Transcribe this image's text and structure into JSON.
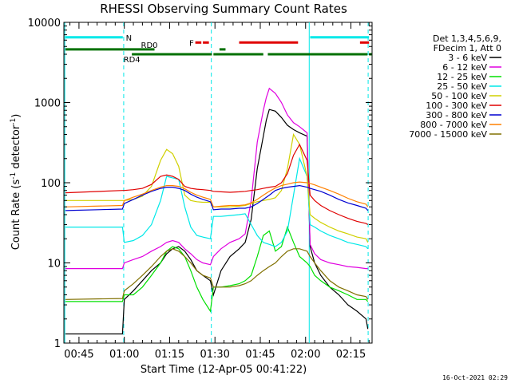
{
  "chart_data": {
    "type": "line",
    "title": "RHESSI Observing Summary Count Rates",
    "xlabel": "Start Time (12-Apr-05 00:41:22)",
    "ylabel": "Count Rate (s⁻¹ detector⁻¹)",
    "ylabel_main": "Count Rate (s",
    "ylabel_sup1": "-1",
    "ylabel_mid": " detector",
    "ylabel_sup2": "-1",
    "ylabel_end": ")",
    "x_start_label": "00:41:22",
    "xlim_min": [
      40,
      142
    ],
    "ylim": [
      1,
      10000
    ],
    "y_scale": "log",
    "x_ticks": [
      {
        "label": "00:45",
        "min": 45
      },
      {
        "label": "01:00",
        "min": 60
      },
      {
        "label": "01:15",
        "min": 75
      },
      {
        "label": "01:30",
        "min": 90
      },
      {
        "label": "01:45",
        "min": 105
      },
      {
        "label": "02:00",
        "min": 120
      },
      {
        "label": "02:15",
        "min": 135
      }
    ],
    "y_ticks": [
      {
        "label": "1",
        "value": 1
      },
      {
        "label": "10",
        "value": 10
      },
      {
        "label": "100",
        "value": 100
      },
      {
        "label": "1000",
        "value": 1000
      },
      {
        "label": "10000",
        "value": 10000
      }
    ],
    "legend": {
      "header": [
        "Det 1,3,4,5,6,9,",
        "FDecim 1, Att 0"
      ],
      "placement": "right"
    },
    "flags": [
      {
        "label": "N",
        "color": "#00e8e8",
        "segments": [
          [
            40.5,
            59.5
          ],
          [
            121.5,
            141
          ]
        ],
        "level": 6500
      },
      {
        "label": "F",
        "color": "#e00000",
        "segments": [
          [
            83.5,
            85.5
          ],
          [
            86,
            88
          ],
          [
            98,
            117.5
          ],
          [
            138,
            141
          ]
        ],
        "level": 5600
      },
      {
        "label": "RD0",
        "color": "#007000",
        "segments": [
          [
            40.5,
            70
          ],
          [
            93.5,
            91.5
          ]
        ],
        "level": 4600
      },
      {
        "label": "RD4",
        "color": "#007000",
        "segments": [
          [
            62.5,
            89
          ],
          [
            89.5,
            106
          ],
          [
            107.5,
            140.5
          ],
          [
            141,
            142
          ]
        ],
        "level": 4000
      }
    ],
    "vlines": [
      {
        "min": 40.3,
        "color": "#00e8e8"
      },
      {
        "min": 59.8,
        "color": "#00e8e8",
        "dashed": true
      },
      {
        "min": 88.8,
        "color": "#00e8e8",
        "dashed": true
      },
      {
        "min": 121.2,
        "color": "#00e8e8"
      },
      {
        "min": 140.7,
        "color": "#00e8e8",
        "dashed": true
      }
    ],
    "series": [
      {
        "name": "3 - 6 keV",
        "color": "#000000",
        "x": [
          40.5,
          59.4,
          60,
          63,
          66,
          69,
          72,
          74,
          76,
          78,
          80,
          82,
          84,
          86,
          88.5,
          89.5,
          92,
          95,
          98,
          100,
          102,
          104,
          106,
          107,
          108,
          110,
          112,
          114,
          116,
          118,
          120.5,
          121.5,
          123,
          125,
          128,
          131,
          134,
          137,
          140,
          140.6
        ],
        "values": [
          1.3,
          1.3,
          3.5,
          4.5,
          6,
          8,
          10,
          13,
          15,
          16,
          14,
          11,
          8,
          7,
          6,
          4,
          8,
          12,
          15,
          18,
          35,
          150,
          380,
          600,
          820,
          780,
          650,
          520,
          460,
          420,
          380,
          16,
          10,
          7,
          5,
          4,
          3,
          2.5,
          2,
          1.5
        ]
      },
      {
        "name": "6 - 12 keV",
        "color": "#e000e0",
        "x": [
          40.5,
          59.4,
          60,
          63,
          66,
          69,
          72,
          74,
          76,
          78,
          80,
          82,
          84,
          86,
          88.5,
          89.5,
          92,
          95,
          98,
          100,
          102,
          104,
          106,
          107,
          108,
          110,
          112,
          114,
          116,
          118,
          120.5,
          121.5,
          123,
          125,
          128,
          131,
          134,
          137,
          140,
          140.6
        ],
        "values": [
          8.5,
          8.5,
          10,
          11,
          12,
          14,
          16,
          18,
          19,
          18,
          15,
          13,
          11,
          10,
          9.5,
          12,
          15,
          18,
          20,
          23,
          60,
          320,
          800,
          1150,
          1500,
          1300,
          1000,
          700,
          560,
          500,
          420,
          17,
          13,
          11,
          10,
          9.5,
          9,
          8.8,
          8.5,
          8.5
        ]
      },
      {
        "name": "12 - 25 keV",
        "color": "#00e000",
        "x": [
          40.5,
          59.4,
          60,
          63,
          66,
          69,
          72,
          74,
          76,
          78,
          80,
          82,
          84,
          86,
          88.5,
          89.5,
          92,
          95,
          98,
          100,
          102,
          104,
          106,
          108,
          110,
          112,
          114,
          116,
          118,
          120.5,
          121.5,
          123,
          125,
          128,
          131,
          134,
          137,
          140,
          140.6
        ],
        "values": [
          3.3,
          3.3,
          4,
          4,
          5,
          7,
          10,
          14,
          16,
          15,
          12,
          8,
          5,
          3.5,
          2.5,
          5,
          5,
          5.2,
          5.5,
          6,
          7,
          12,
          22,
          25,
          14,
          16,
          28,
          18,
          12,
          10,
          9,
          7,
          6,
          5,
          4.5,
          4,
          3.5,
          3.5,
          3.3
        ]
      },
      {
        "name": "25 - 50 keV",
        "color": "#00e8e8",
        "x": [
          40.5,
          59.4,
          60,
          63,
          66,
          69,
          72,
          74,
          76,
          78,
          80,
          82,
          84,
          86,
          88.5,
          89.5,
          92,
          95,
          98,
          100,
          102,
          104,
          106,
          108,
          110,
          112,
          114,
          116,
          118,
          120.5,
          121.5,
          123,
          125,
          128,
          131,
          134,
          137,
          140,
          140.6
        ],
        "values": [
          28,
          28,
          18,
          19,
          22,
          30,
          60,
          120,
          115,
          110,
          50,
          28,
          22,
          21,
          20,
          38,
          38,
          39,
          40,
          41,
          30,
          22,
          18,
          17,
          16,
          18,
          25,
          70,
          200,
          120,
          30,
          28,
          25,
          22,
          20,
          18,
          17,
          16,
          15
        ]
      },
      {
        "name": "50 - 100 keV",
        "color": "#d0d000",
        "x": [
          40.5,
          59.4,
          60,
          63,
          66,
          69,
          72,
          74,
          76,
          78,
          80,
          82,
          84,
          86,
          88.5,
          89.5,
          92,
          95,
          98,
          100,
          102,
          104,
          106,
          108,
          110,
          112,
          114,
          116,
          118,
          120.5,
          121.5,
          123,
          125,
          128,
          131,
          134,
          137,
          140,
          140.6
        ],
        "values": [
          60,
          60,
          60,
          62,
          68,
          90,
          190,
          260,
          230,
          160,
          70,
          60,
          58,
          57,
          57,
          50,
          50,
          50,
          51,
          52,
          55,
          58,
          60,
          62,
          65,
          80,
          150,
          400,
          300,
          120,
          40,
          36,
          32,
          28,
          25,
          23,
          21,
          20,
          18
        ]
      },
      {
        "name": "100 - 300 keV",
        "color": "#e00000",
        "x": [
          40.5,
          59.4,
          60,
          63,
          66,
          69,
          72,
          74,
          76,
          78,
          80,
          82,
          84,
          86,
          88.5,
          89.5,
          92,
          95,
          98,
          100,
          102,
          104,
          106,
          108,
          110,
          112,
          114,
          116,
          118,
          120.5,
          121.5,
          123,
          125,
          128,
          131,
          134,
          137,
          140,
          140.6
        ],
        "values": [
          75,
          80,
          80,
          82,
          85,
          95,
          120,
          125,
          120,
          110,
          90,
          85,
          83,
          82,
          80,
          78,
          77,
          76,
          77,
          78,
          80,
          82,
          85,
          88,
          90,
          100,
          130,
          220,
          300,
          190,
          70,
          60,
          52,
          45,
          40,
          36,
          33,
          31,
          30
        ]
      },
      {
        "name": "300 - 800 keV",
        "color": "#0000d0",
        "x": [
          40.5,
          59.4,
          60,
          63,
          66,
          69,
          72,
          74,
          76,
          78,
          80,
          82,
          84,
          86,
          88.5,
          89.5,
          92,
          95,
          98,
          100,
          102,
          104,
          106,
          108,
          110,
          112,
          114,
          116,
          118,
          120.5,
          121.5,
          123,
          125,
          128,
          131,
          134,
          137,
          140,
          140.6
        ],
        "values": [
          45,
          47,
          55,
          62,
          70,
          78,
          85,
          88,
          88,
          85,
          80,
          72,
          66,
          62,
          58,
          46,
          47,
          47,
          48,
          48,
          50,
          55,
          62,
          70,
          80,
          85,
          88,
          90,
          92,
          88,
          85,
          82,
          78,
          70,
          62,
          56,
          52,
          48,
          45
        ]
      },
      {
        "name": "800 - 7000 keV",
        "color": "#ff8000",
        "x": [
          40.5,
          59.4,
          60,
          63,
          66,
          69,
          72,
          74,
          76,
          78,
          80,
          82,
          84,
          86,
          88.5,
          89.5,
          92,
          95,
          98,
          100,
          102,
          104,
          106,
          108,
          110,
          112,
          114,
          116,
          118,
          120.5,
          121.5,
          123,
          125,
          128,
          131,
          134,
          137,
          140,
          140.6
        ],
        "values": [
          50,
          52,
          60,
          66,
          72,
          80,
          88,
          92,
          92,
          90,
          84,
          76,
          70,
          66,
          62,
          50,
          51,
          52,
          52,
          53,
          56,
          62,
          70,
          78,
          86,
          92,
          96,
          100,
          102,
          100,
          98,
          94,
          88,
          80,
          72,
          64,
          58,
          54,
          50
        ]
      },
      {
        "name": "7000 - 15000 keV",
        "color": "#807000",
        "x": [
          40.5,
          59.4,
          60,
          63,
          66,
          69,
          72,
          74,
          76,
          78,
          80,
          82,
          84,
          86,
          88.5,
          89.5,
          92,
          95,
          98,
          100,
          102,
          104,
          106,
          108,
          110,
          112,
          114,
          116,
          118,
          120.5,
          121.5,
          123,
          125,
          128,
          131,
          134,
          137,
          140,
          140.6
        ],
        "values": [
          3.5,
          3.6,
          4.5,
          5.5,
          7,
          9,
          12,
          14,
          15,
          14,
          12,
          10,
          8,
          7,
          6.5,
          5,
          5,
          5,
          5.2,
          5.5,
          6,
          7,
          8,
          9,
          10,
          12,
          14,
          15,
          15,
          14,
          12,
          10,
          8,
          6,
          5,
          4.5,
          4,
          3.8,
          3.5
        ]
      }
    ]
  },
  "footer": {
    "timestamp": "16-Oct-2021 02:29"
  }
}
